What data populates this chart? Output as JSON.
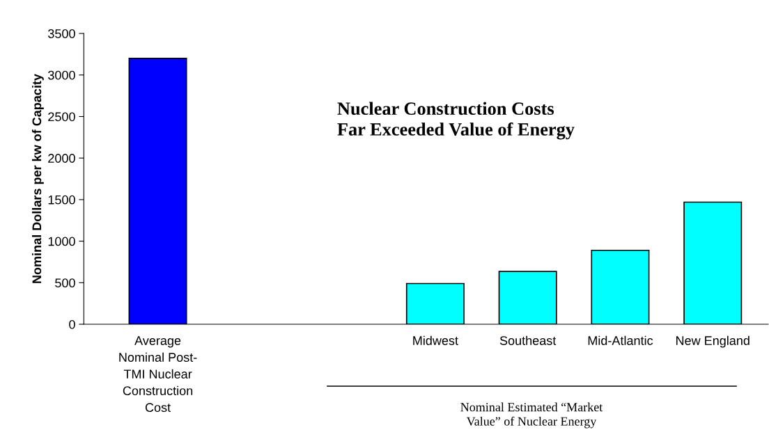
{
  "chart_data": {
    "type": "bar",
    "ylabel": "Nominal Dollars per kw of Capacity",
    "categories": [
      "Average\nNominal Post-\nTMI Nuclear\nConstruction\nCost",
      null,
      null,
      "Midwest",
      "Southeast",
      "Mid-Atlantic",
      "New England"
    ],
    "values": [
      3200,
      null,
      null,
      490,
      635,
      890,
      1470
    ],
    "colors": [
      "#0000ff",
      "#00ffff",
      "#00ffff",
      "#00ffff",
      "#00ffff",
      "#00ffff",
      "#00ffff"
    ],
    "ylim": [
      0,
      3500
    ],
    "yticks": [
      0,
      500,
      1000,
      1500,
      2000,
      2500,
      3000,
      3500
    ],
    "grid": false,
    "legend": false,
    "annotations": [
      "Nuclear Construction Costs\nFar Exceeded Value of Energy",
      "Nominal Estimated “Market\nValue” of Nuclear Energy"
    ]
  }
}
